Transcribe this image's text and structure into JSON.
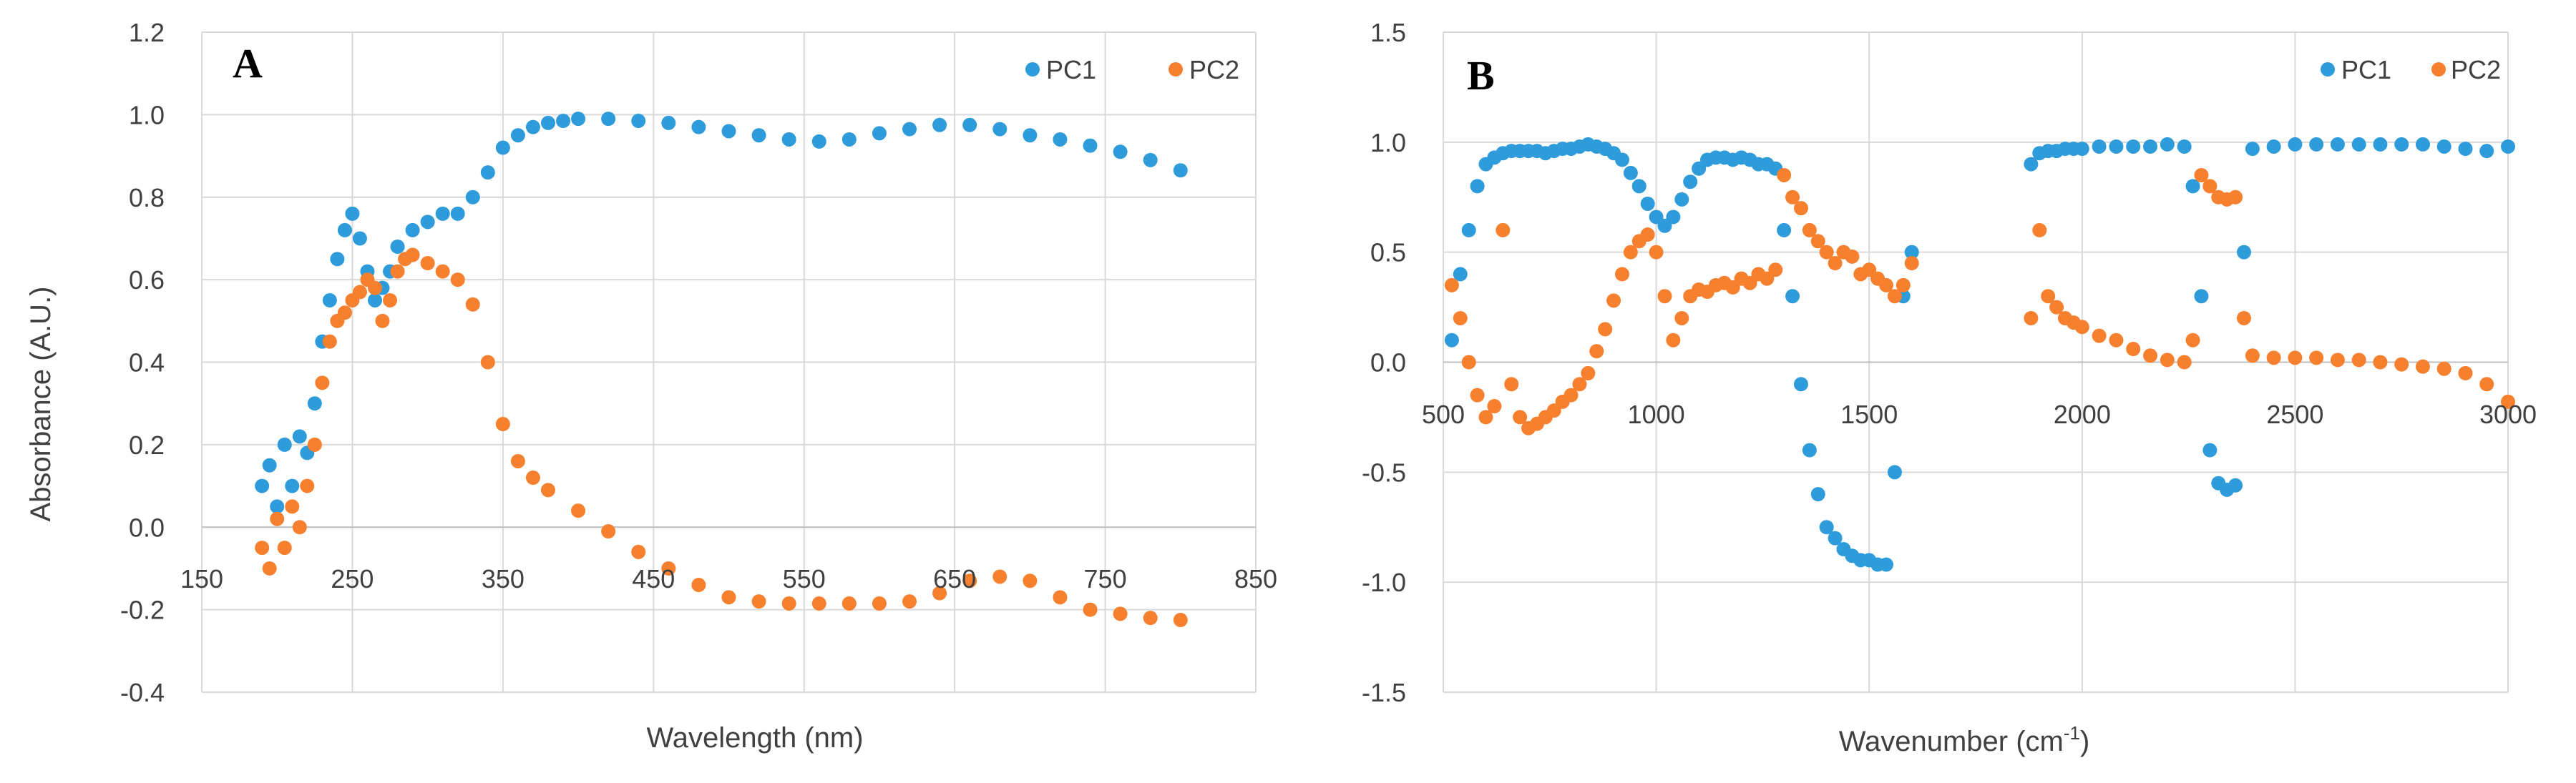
{
  "colors": {
    "pc1": "#2e9bdb",
    "pc2": "#f7802e",
    "grid": "#d9d9d9",
    "text": "#404040"
  },
  "chart_data": [
    {
      "type": "scatter",
      "panel_label": "A",
      "xlabel": "Wavelength (nm)",
      "ylabel": "Absorbance (A.U.)",
      "xlim": [
        150,
        850
      ],
      "ylim": [
        -0.4,
        1.2
      ],
      "x_tick_labels": [
        "150",
        "250",
        "350",
        "450",
        "550",
        "650",
        "750",
        "850"
      ],
      "y_tick_labels": [
        "-0.4",
        "-0.2",
        "0.0",
        "0.2",
        "0.4",
        "0.6",
        "0.8",
        "1.0",
        "1.2"
      ],
      "legend_position": "top-right",
      "series": [
        {
          "name": "PC1",
          "x": [
            190,
            195,
            200,
            205,
            210,
            215,
            220,
            225,
            230,
            235,
            240,
            245,
            250,
            255,
            260,
            265,
            270,
            275,
            280,
            290,
            300,
            310,
            320,
            330,
            340,
            350,
            360,
            370,
            380,
            390,
            400,
            420,
            440,
            460,
            480,
            500,
            520,
            540,
            560,
            580,
            600,
            620,
            640,
            660,
            680,
            700,
            720,
            740,
            760,
            780,
            800
          ],
          "y": [
            0.1,
            0.15,
            0.05,
            0.2,
            0.1,
            0.22,
            0.18,
            0.3,
            0.45,
            0.55,
            0.65,
            0.72,
            0.76,
            0.7,
            0.62,
            0.55,
            0.58,
            0.62,
            0.68,
            0.72,
            0.74,
            0.76,
            0.76,
            0.8,
            0.86,
            0.92,
            0.95,
            0.97,
            0.98,
            0.985,
            0.99,
            0.99,
            0.985,
            0.98,
            0.97,
            0.96,
            0.95,
            0.94,
            0.935,
            0.94,
            0.955,
            0.965,
            0.975,
            0.975,
            0.965,
            0.95,
            0.94,
            0.925,
            0.91,
            0.89,
            0.865
          ]
        },
        {
          "name": "PC2",
          "x": [
            190,
            195,
            200,
            205,
            210,
            215,
            220,
            225,
            230,
            235,
            240,
            245,
            250,
            255,
            260,
            265,
            270,
            275,
            280,
            285,
            290,
            300,
            310,
            320,
            330,
            340,
            350,
            360,
            370,
            380,
            400,
            420,
            440,
            460,
            480,
            500,
            520,
            540,
            560,
            580,
            600,
            620,
            640,
            660,
            680,
            700,
            720,
            740,
            760,
            780,
            800
          ],
          "y": [
            -0.05,
            -0.1,
            0.02,
            -0.05,
            0.05,
            0.0,
            0.1,
            0.2,
            0.35,
            0.45,
            0.5,
            0.52,
            0.55,
            0.57,
            0.6,
            0.58,
            0.5,
            0.55,
            0.62,
            0.65,
            0.66,
            0.64,
            0.62,
            0.6,
            0.54,
            0.4,
            0.25,
            0.16,
            0.12,
            0.09,
            0.04,
            -0.01,
            -0.06,
            -0.1,
            -0.14,
            -0.17,
            -0.18,
            -0.185,
            -0.185,
            -0.185,
            -0.185,
            -0.18,
            -0.16,
            -0.13,
            -0.12,
            -0.13,
            -0.17,
            -0.2,
            -0.21,
            -0.22,
            -0.225
          ]
        }
      ]
    },
    {
      "type": "scatter",
      "panel_label": "B",
      "xlabel": "Wavenumber (cm",
      "xlabel_superscript": "-1",
      "xlabel_suffix": ")",
      "ylabel": "",
      "xlim": [
        500,
        3000
      ],
      "ylim": [
        -1.5,
        1.5
      ],
      "x_tick_labels": [
        "500",
        "1000",
        "1500",
        "2000",
        "2500",
        "3000"
      ],
      "y_tick_labels": [
        "-1.5",
        "-1.0",
        "-0.5",
        "0.0",
        "0.5",
        "1.0",
        "1.5"
      ],
      "legend_position": "top-right",
      "series": [
        {
          "name": "PC1",
          "x": [
            520,
            540,
            560,
            580,
            600,
            620,
            640,
            660,
            680,
            700,
            720,
            740,
            760,
            780,
            800,
            820,
            840,
            860,
            880,
            900,
            920,
            940,
            960,
            980,
            1000,
            1020,
            1040,
            1060,
            1080,
            1100,
            1120,
            1140,
            1160,
            1180,
            1200,
            1220,
            1240,
            1260,
            1280,
            1300,
            1320,
            1340,
            1360,
            1380,
            1400,
            1420,
            1440,
            1460,
            1480,
            1500,
            1520,
            1540,
            1560,
            1580,
            1600,
            1880,
            1900,
            1920,
            1940,
            1960,
            1980,
            2000,
            2040,
            2080,
            2120,
            2160,
            2200,
            2240,
            2260,
            2280,
            2300,
            2320,
            2340,
            2360,
            2380,
            2400,
            2450,
            2500,
            2550,
            2600,
            2650,
            2700,
            2750,
            2800,
            2850,
            2900,
            2950,
            3000
          ],
          "y": [
            0.1,
            0.4,
            0.6,
            0.8,
            0.9,
            0.93,
            0.95,
            0.96,
            0.96,
            0.96,
            0.96,
            0.95,
            0.96,
            0.97,
            0.97,
            0.98,
            0.99,
            0.98,
            0.97,
            0.95,
            0.92,
            0.86,
            0.8,
            0.72,
            0.66,
            0.62,
            0.66,
            0.74,
            0.82,
            0.88,
            0.92,
            0.93,
            0.93,
            0.92,
            0.93,
            0.92,
            0.9,
            0.9,
            0.88,
            0.6,
            0.3,
            -0.1,
            -0.4,
            -0.6,
            -0.75,
            -0.8,
            -0.85,
            -0.88,
            -0.9,
            -0.9,
            -0.92,
            -0.92,
            -0.5,
            0.3,
            0.5,
            0.9,
            0.95,
            0.96,
            0.96,
            0.97,
            0.97,
            0.97,
            0.98,
            0.98,
            0.98,
            0.98,
            0.99,
            0.98,
            0.8,
            0.3,
            -0.4,
            -0.55,
            -0.58,
            -0.56,
            0.5,
            0.97,
            0.98,
            0.99,
            0.99,
            0.99,
            0.99,
            0.99,
            0.99,
            0.99,
            0.98,
            0.97,
            0.96,
            0.98
          ]
        },
        {
          "name": "PC2",
          "x": [
            520,
            540,
            560,
            580,
            600,
            620,
            640,
            660,
            680,
            700,
            720,
            740,
            760,
            780,
            800,
            820,
            840,
            860,
            880,
            900,
            920,
            940,
            960,
            980,
            1000,
            1020,
            1040,
            1060,
            1080,
            1100,
            1120,
            1140,
            1160,
            1180,
            1200,
            1220,
            1240,
            1260,
            1280,
            1300,
            1320,
            1340,
            1360,
            1380,
            1400,
            1420,
            1440,
            1460,
            1480,
            1500,
            1520,
            1540,
            1560,
            1580,
            1600,
            1880,
            1900,
            1920,
            1940,
            1960,
            1980,
            2000,
            2040,
            2080,
            2120,
            2160,
            2200,
            2240,
            2260,
            2280,
            2300,
            2320,
            2340,
            2360,
            2380,
            2400,
            2450,
            2500,
            2550,
            2600,
            2650,
            2700,
            2750,
            2800,
            2850,
            2900,
            2950,
            3000
          ],
          "y": [
            0.35,
            0.2,
            0.0,
            -0.15,
            -0.25,
            -0.2,
            0.6,
            -0.1,
            -0.25,
            -0.3,
            -0.28,
            -0.25,
            -0.22,
            -0.18,
            -0.15,
            -0.1,
            -0.05,
            0.05,
            0.15,
            0.28,
            0.4,
            0.5,
            0.55,
            0.58,
            0.5,
            0.3,
            0.1,
            0.2,
            0.3,
            0.33,
            0.32,
            0.35,
            0.36,
            0.34,
            0.38,
            0.36,
            0.4,
            0.38,
            0.42,
            0.85,
            0.75,
            0.7,
            0.6,
            0.55,
            0.5,
            0.45,
            0.5,
            0.48,
            0.4,
            0.42,
            0.38,
            0.35,
            0.3,
            0.35,
            0.45,
            0.2,
            0.6,
            0.3,
            0.25,
            0.2,
            0.18,
            0.16,
            0.12,
            0.1,
            0.06,
            0.03,
            0.01,
            0.0,
            0.1,
            0.85,
            0.8,
            0.75,
            0.74,
            0.75,
            0.2,
            0.03,
            0.02,
            0.02,
            0.02,
            0.01,
            0.01,
            0.0,
            -0.01,
            -0.02,
            -0.03,
            -0.05,
            -0.1,
            -0.18
          ]
        }
      ]
    }
  ]
}
